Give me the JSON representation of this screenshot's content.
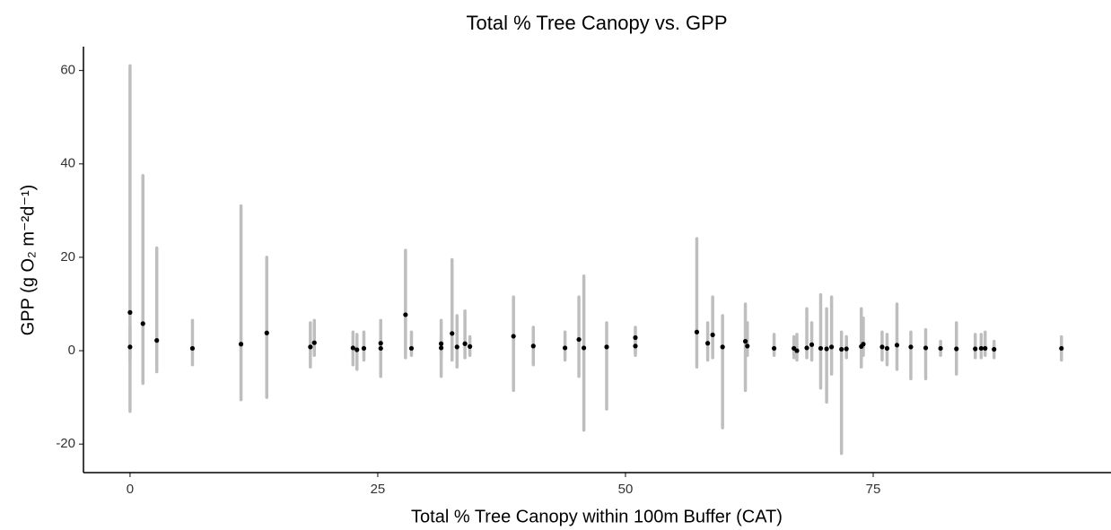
{
  "chart_data": {
    "type": "scatter",
    "title": "Total % Tree Canopy vs. GPP",
    "xlabel": "Total % Tree Canopy within 100m Buffer (CAT)",
    "ylabel": "GPP (g O₂ m⁻²d⁻¹)",
    "xlim": [
      -4.7,
      99
    ],
    "ylim": [
      -26.1,
      65.1
    ],
    "xticks": [
      0,
      25,
      50,
      75
    ],
    "yticks": [
      -20,
      0,
      20,
      40,
      60
    ],
    "grid": false,
    "x": [
      0,
      0,
      1.3,
      2.7,
      6.3,
      11.2,
      13.8,
      18.2,
      18.6,
      22.5,
      22.9,
      23.6,
      25.3,
      25.3,
      27.8,
      28.4,
      31.4,
      31.4,
      32.5,
      33,
      33.8,
      34.3,
      38.7,
      40.7,
      43.9,
      45.3,
      45.8,
      48.1,
      51,
      51,
      57.2,
      58.3,
      58.8,
      59.8,
      62.1,
      62.3,
      65,
      67,
      67.3,
      68.3,
      68.8,
      69.7,
      70.3,
      70.8,
      71.8,
      72.3,
      73.8,
      74,
      75.9,
      76.4,
      77.4,
      78.8,
      80.3,
      81.8,
      83.4,
      85.3,
      85.9,
      86.3,
      87.2,
      94
    ],
    "series": [
      {
        "color": "#bebebe",
        "low": [
          -13,
          -2,
          -7,
          -4.5,
          -3,
          -10.5,
          -10,
          -3.5,
          -1,
          -3,
          -4,
          -2,
          -5.5,
          -1,
          -1.5,
          -1,
          -5.5,
          -1,
          -2,
          -3.5,
          -1.5,
          -1,
          -8.5,
          -3,
          -2,
          -5.5,
          -17,
          -12.5,
          -1,
          -0.5,
          -3.5,
          -2,
          -1.5,
          -16.5,
          -8.5,
          -1,
          -1,
          -1.5,
          -2,
          -1.5,
          -2,
          -8,
          -11,
          -5,
          -22,
          -1.5,
          -3.5,
          -1,
          -2,
          -3,
          -4,
          -6,
          -6,
          -1,
          -5,
          -1.5,
          -1.5,
          -1,
          -1.5,
          -2
        ],
        "high": [
          61,
          5,
          37.5,
          22,
          6.5,
          31,
          20,
          6,
          6.5,
          4,
          3.5,
          4,
          6.5,
          3,
          21.5,
          4,
          6.5,
          3,
          19.5,
          7.5,
          8.5,
          3,
          11.5,
          5,
          4,
          11.5,
          16,
          6,
          5,
          3,
          24,
          6,
          11.5,
          7.5,
          10,
          6,
          3.5,
          3,
          3.5,
          9,
          6,
          12,
          9,
          11.5,
          4,
          3,
          9,
          7,
          4,
          3.5,
          10,
          4,
          4.5,
          2,
          6,
          3.5,
          3.5,
          4,
          2,
          3
        ]
      },
      {
        "color": "#000000",
        "values": [
          8.2,
          0.8,
          5.8,
          2.2,
          0.5,
          1.4,
          3.8,
          0.8,
          1.7,
          0.6,
          0.2,
          0.5,
          0.5,
          1.6,
          7.7,
          0.5,
          1.5,
          0.6,
          3.7,
          0.8,
          1.5,
          0.9,
          3.1,
          1,
          0.6,
          2.4,
          0.6,
          0.8,
          2.8,
          1,
          4,
          1.6,
          3.4,
          0.8,
          2,
          1,
          0.5,
          0.5,
          0,
          0.6,
          1.3,
          0.5,
          0.4,
          0.8,
          0.3,
          0.4,
          0.9,
          1.4,
          0.8,
          0.5,
          1.2,
          0.8,
          0.6,
          0.5,
          0.4,
          0.4,
          0.5,
          0.5,
          0.3,
          0.5
        ]
      }
    ]
  }
}
